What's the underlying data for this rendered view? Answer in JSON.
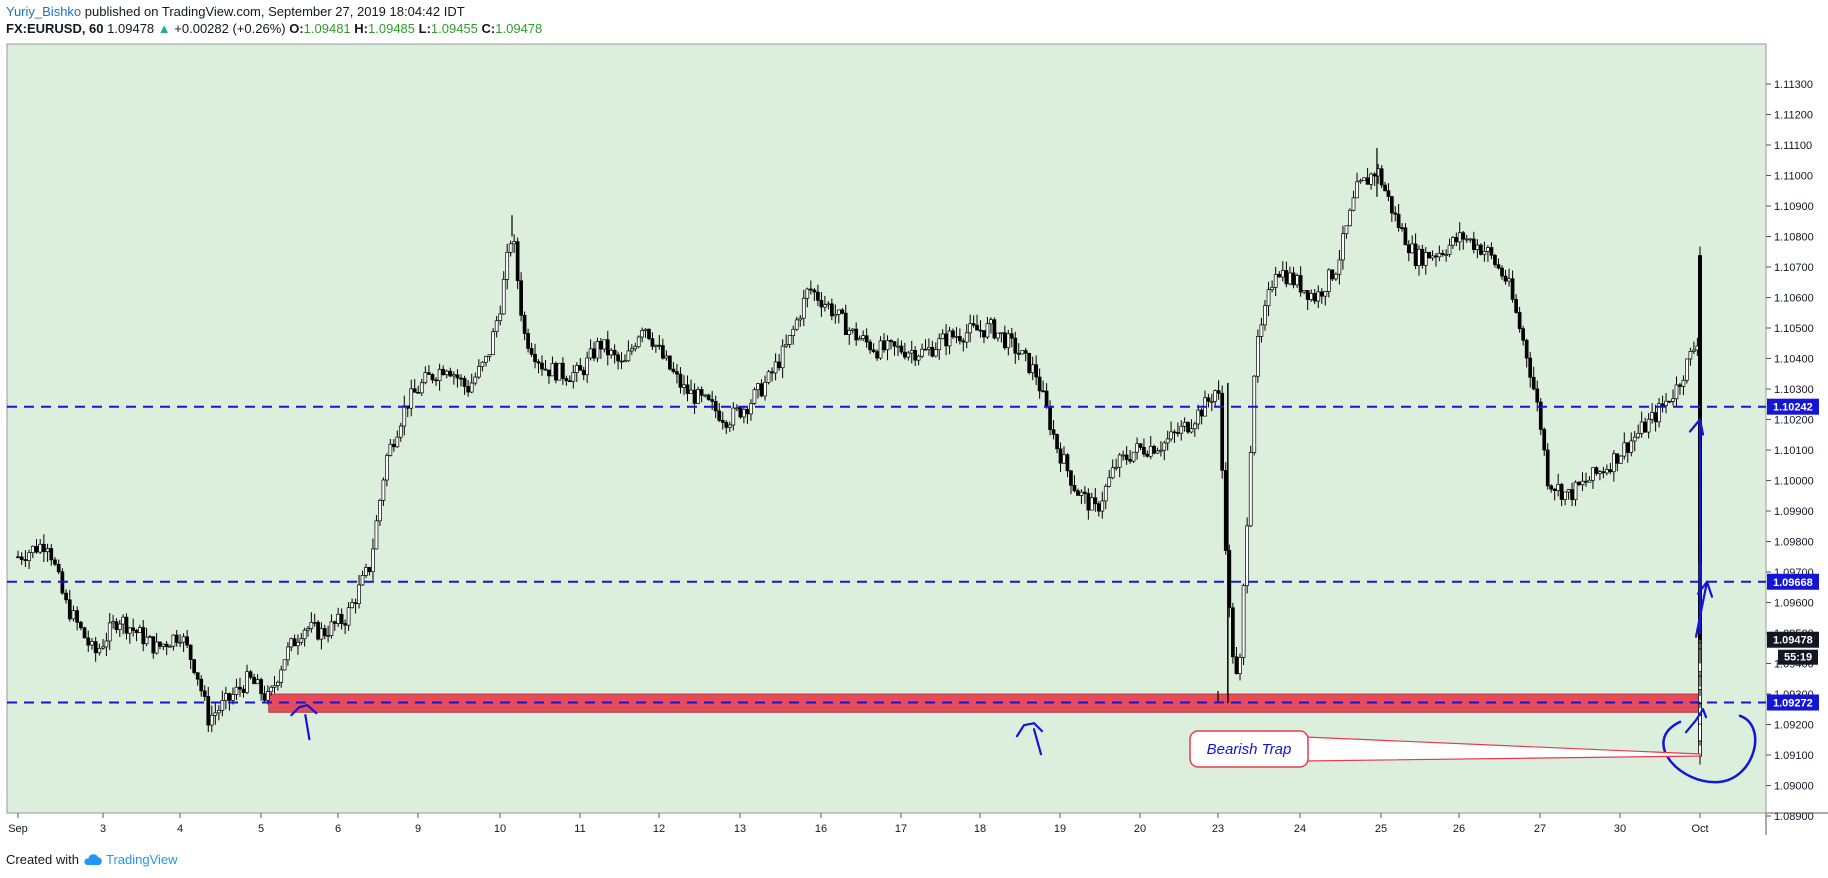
{
  "header": {
    "author": "Yuriy_Bishko",
    "published_text": "published on TradingView.com, September 27, 2019 18:04:42 IDT",
    "symbol": "FX:EURUSD, 60",
    "last": "1.09478",
    "change": "+0.00282 (+0.26%)",
    "o_label": "O:",
    "o_value": "1.09481",
    "h_label": "H:",
    "h_value": "1.09485",
    "l_label": "L:",
    "l_value": "1.09455",
    "c_label": "C:",
    "c_value": "1.09478"
  },
  "footer": {
    "created_with": "Created with",
    "brand": "TradingView"
  },
  "colors": {
    "background": "#dcefdc",
    "support_zone": "#e83a4e",
    "blue_zone": "#3a5ee8",
    "dashed": "#1515d6",
    "ink": "#1515d6",
    "candles": "#000000"
  },
  "chart_data": {
    "type": "candlestick",
    "symbol": "FX:EURUSD",
    "interval": "60",
    "ylim": [
      1.0885,
      1.1135
    ],
    "y_ticks": [
      "1.11300",
      "1.11200",
      "1.11100",
      "1.11000",
      "1.10900",
      "1.10800",
      "1.10700",
      "1.10600",
      "1.10500",
      "1.10400",
      "1.10300",
      "1.10200",
      "1.10100",
      "1.10000",
      "1.09900",
      "1.09800",
      "1.09700",
      "1.09600",
      "1.09500",
      "1.09400",
      "1.09300",
      "1.09200",
      "1.09100",
      "1.09000",
      "1.08900"
    ],
    "x_ticks": [
      "Sep",
      "3",
      "4",
      "5",
      "6",
      "9",
      "10",
      "11",
      "12",
      "13",
      "16",
      "17",
      "18",
      "19",
      "20",
      "23",
      "24",
      "25",
      "26",
      "27",
      "30",
      "Oct"
    ],
    "horizontal_levels": [
      {
        "price": 1.10242,
        "label": "1.10242"
      },
      {
        "price": 1.09668,
        "label": "1.09668"
      },
      {
        "price": 1.09272,
        "label": "1.09272"
      }
    ],
    "support_zone": {
      "from_x": 3.1,
      "to_x": 27.2,
      "low": 1.0924,
      "high": 1.093
    },
    "blue_zone": {
      "from_x": 27.2,
      "to_x": 29.4,
      "low": 1.0924,
      "high": 1.093
    },
    "current_price_label": "1.09478",
    "countdown_label": "55:19",
    "annotation": "Bearish Trap",
    "price_path": [
      [
        0.0,
        1.0975
      ],
      [
        0.35,
        1.098
      ],
      [
        0.55,
        1.096
      ],
      [
        0.9,
        1.0943
      ],
      [
        1.2,
        1.0955
      ],
      [
        1.7,
        1.0945
      ],
      [
        2.0,
        1.095
      ],
      [
        2.2,
        1.0938
      ],
      [
        2.35,
        1.0922
      ],
      [
        2.6,
        1.0928
      ],
      [
        2.85,
        1.0935
      ],
      [
        3.1,
        1.0928
      ],
      [
        3.3,
        1.0942
      ],
      [
        3.55,
        1.0952
      ],
      [
        3.8,
        1.095
      ],
      [
        4.1,
        1.0955
      ],
      [
        4.4,
        1.0972
      ],
      [
        4.6,
        1.1007
      ],
      [
        4.85,
        1.1025
      ],
      [
        5.1,
        1.1033
      ],
      [
        5.35,
        1.1038
      ],
      [
        5.6,
        1.103
      ],
      [
        5.85,
        1.104
      ],
      [
        6.0,
        1.1057
      ],
      [
        6.15,
        1.1082
      ],
      [
        6.3,
        1.1048
      ],
      [
        6.55,
        1.1037
      ],
      [
        6.8,
        1.1035
      ],
      [
        7.0,
        1.1035
      ],
      [
        7.25,
        1.1045
      ],
      [
        7.55,
        1.1037
      ],
      [
        7.8,
        1.1052
      ],
      [
        8.05,
        1.104
      ],
      [
        8.3,
        1.103
      ],
      [
        8.6,
        1.1025
      ],
      [
        8.85,
        1.102
      ],
      [
        9.1,
        1.1025
      ],
      [
        9.35,
        1.1033
      ],
      [
        9.6,
        1.1045
      ],
      [
        9.85,
        1.1063
      ],
      [
        10.1,
        1.1057
      ],
      [
        10.4,
        1.1048
      ],
      [
        10.7,
        1.1043
      ],
      [
        11.0,
        1.1043
      ],
      [
        11.3,
        1.1042
      ],
      [
        11.6,
        1.1047
      ],
      [
        11.9,
        1.1049
      ],
      [
        12.15,
        1.105
      ],
      [
        12.45,
        1.1043
      ],
      [
        12.7,
        1.1035
      ],
      [
        12.95,
        1.1012
      ],
      [
        13.2,
        1.0997
      ],
      [
        13.45,
        1.099
      ],
      [
        13.7,
        1.1005
      ],
      [
        13.95,
        1.101
      ],
      [
        14.3,
        1.1012
      ],
      [
        14.6,
        1.1018
      ],
      [
        14.85,
        1.1025
      ],
      [
        15.0,
        1.1031
      ],
      [
        15.15,
        1.095
      ],
      [
        15.25,
        1.093
      ],
      [
        15.45,
        1.104
      ],
      [
        15.7,
        1.107
      ],
      [
        15.95,
        1.1065
      ],
      [
        16.2,
        1.106
      ],
      [
        16.45,
        1.107
      ],
      [
        16.7,
        1.1095
      ],
      [
        16.95,
        1.1102
      ],
      [
        17.2,
        1.1085
      ],
      [
        17.45,
        1.1073
      ],
      [
        17.75,
        1.1075
      ],
      [
        18.05,
        1.108
      ],
      [
        18.35,
        1.1075
      ],
      [
        18.6,
        1.1065
      ],
      [
        18.85,
        1.104
      ],
      [
        19.0,
        1.102
      ],
      [
        19.1,
        1.1
      ],
      [
        19.35,
        1.0995
      ],
      [
        19.6,
        1.1
      ],
      [
        19.85,
        1.1005
      ],
      [
        20.1,
        1.1012
      ],
      [
        20.4,
        1.102
      ],
      [
        20.7,
        1.103
      ],
      [
        20.95,
        1.1045
      ],
      [
        21.2,
        1.1065
      ],
      [
        21.45,
        1.1072
      ],
      [
        21.7,
        1.1072
      ],
      [
        21.95,
        1.1065
      ],
      [
        22.2,
        1.106
      ],
      [
        22.45,
        1.105
      ],
      [
        22.7,
        1.105
      ],
      [
        22.95,
        1.1035
      ],
      [
        23.2,
        1.1025
      ],
      [
        23.4,
        1.1025
      ],
      [
        23.65,
        1.104
      ],
      [
        23.9,
        1.106
      ],
      [
        24.15,
        1.107
      ],
      [
        24.4,
        1.106
      ],
      [
        24.65,
        1.1052
      ],
      [
        24.9,
        1.1048
      ],
      [
        25.15,
        1.1055
      ],
      [
        25.4,
        1.106
      ],
      [
        25.65,
        1.1055
      ],
      [
        25.9,
        1.105
      ],
      [
        26.15,
        1.1035
      ],
      [
        26.4,
        1.102
      ],
      [
        26.6,
        1.101
      ],
      [
        26.85,
        1.1015
      ],
      [
        27.1,
        1.102
      ],
      [
        27.3,
        1.1022
      ],
      [
        27.5,
        1.1015
      ],
      [
        27.65,
        1.0975
      ],
      [
        27.85,
        1.0982
      ],
      [
        28.1,
        1.0992
      ],
      [
        28.35,
        1.0993
      ],
      [
        28.6,
        1.0988
      ],
      [
        28.85,
        1.099
      ],
      [
        29.1,
        1.0995
      ],
      [
        29.35,
        1.1
      ],
      [
        29.6,
        1.1015
      ],
      [
        29.85,
        1.1022
      ],
      [
        30.05,
        1.102
      ],
      [
        30.3,
        1.101
      ],
      [
        30.55,
        1.1005
      ],
      [
        30.8,
        1.1
      ],
      [
        30.95,
        1.0985
      ],
      [
        31.15,
        1.096
      ],
      [
        31.4,
        1.0952
      ],
      [
        31.65,
        1.0945
      ],
      [
        31.85,
        1.0955
      ],
      [
        32.1,
        1.096
      ],
      [
        32.35,
        1.0963
      ],
      [
        32.55,
        1.0948
      ],
      [
        32.7,
        1.0932
      ],
      [
        32.9,
        1.095
      ],
      [
        33.05,
        1.0962
      ],
      [
        33.15,
        1.094
      ],
      [
        33.3,
        1.0925
      ],
      [
        33.45,
        1.0918
      ],
      [
        33.6,
        1.0922
      ],
      [
        33.75,
        1.0915
      ],
      [
        33.9,
        1.0912
      ],
      [
        34.05,
        1.092
      ],
      [
        34.2,
        1.0935
      ],
      [
        34.35,
        1.0945
      ],
      [
        34.5,
        1.095
      ]
    ]
  }
}
